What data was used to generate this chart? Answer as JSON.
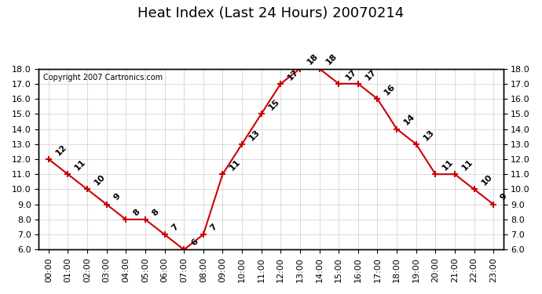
{
  "title": "Heat Index (Last 24 Hours) 20070214",
  "copyright": "Copyright 2007 Cartronics.com",
  "hours": [
    "00:00",
    "01:00",
    "02:00",
    "03:00",
    "04:00",
    "05:00",
    "06:00",
    "07:00",
    "08:00",
    "09:00",
    "10:00",
    "11:00",
    "12:00",
    "13:00",
    "14:00",
    "15:00",
    "16:00",
    "17:00",
    "18:00",
    "19:00",
    "20:00",
    "21:00",
    "22:00",
    "23:00"
  ],
  "values": [
    12,
    11,
    10,
    9,
    8,
    8,
    7,
    6,
    7,
    11,
    13,
    15,
    17,
    18,
    18,
    17,
    17,
    16,
    14,
    13,
    11,
    11,
    10,
    9
  ],
  "ylim_min": 6.0,
  "ylim_max": 18.0,
  "line_color": "#cc0000",
  "marker": "+",
  "marker_color": "#cc0000",
  "marker_size": 6,
  "bg_color": "#ffffff",
  "grid_color": "#cccccc",
  "label_color": "#000000",
  "title_fontsize": 13,
  "tick_fontsize": 8,
  "label_fontsize": 8,
  "copyright_fontsize": 7
}
